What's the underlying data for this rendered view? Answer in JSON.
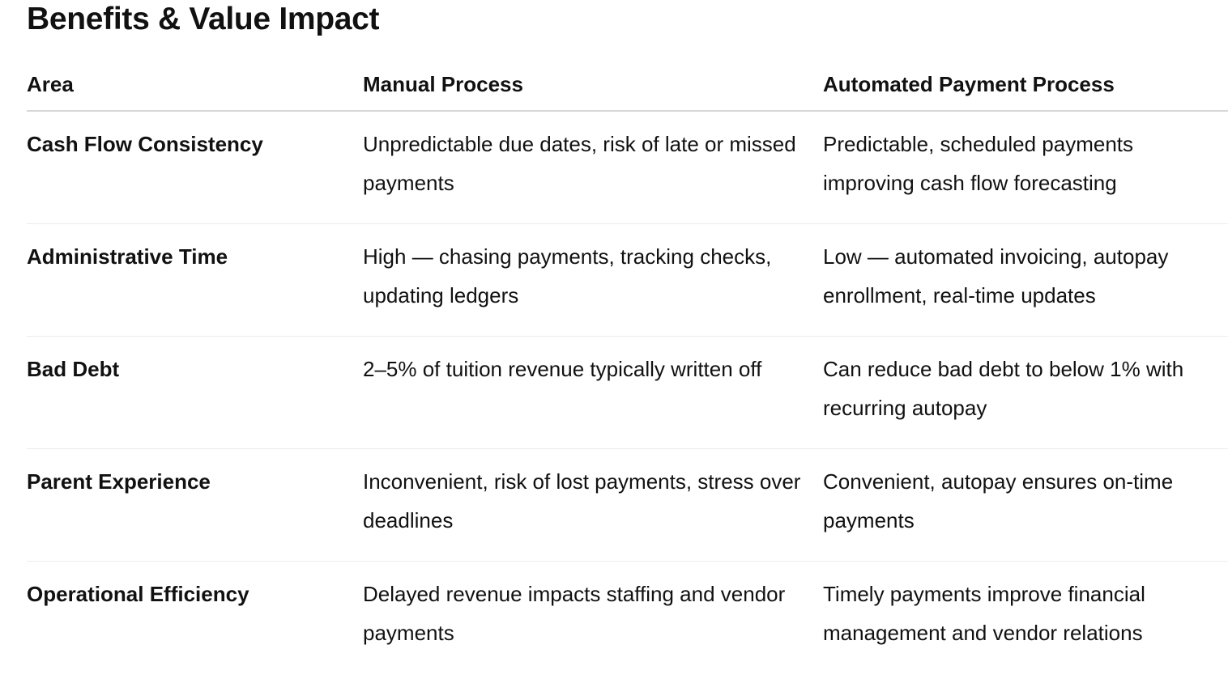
{
  "page": {
    "title": "Benefits & Value Impact"
  },
  "table": {
    "headers": {
      "area": "Area",
      "manual": "Manual Process",
      "automated": "Automated Payment Process"
    },
    "rows": [
      {
        "area": "Cash Flow Consistency",
        "manual": "Unpredictable due dates, risk of late or missed payments",
        "automated": "Predictable, scheduled payments improving cash flow forecasting"
      },
      {
        "area": "Administrative Time",
        "manual": "High — chasing payments, tracking checks, updating ledgers",
        "automated": "Low — automated invoicing, autopay enrollment, real-time updates"
      },
      {
        "area": "Bad Debt",
        "manual": "2–5% of tuition revenue typically written off",
        "automated": "Can reduce bad debt to below 1% with recurring autopay"
      },
      {
        "area": "Parent Experience",
        "manual": "Inconvenient, risk of lost payments, stress over deadlines",
        "automated": "Convenient, autopay ensures on-time payments"
      },
      {
        "area": "Operational Efficiency",
        "manual": "Delayed revenue impacts staffing and vendor payments",
        "automated": "Timely payments improve financial management and vendor relations"
      }
    ]
  }
}
